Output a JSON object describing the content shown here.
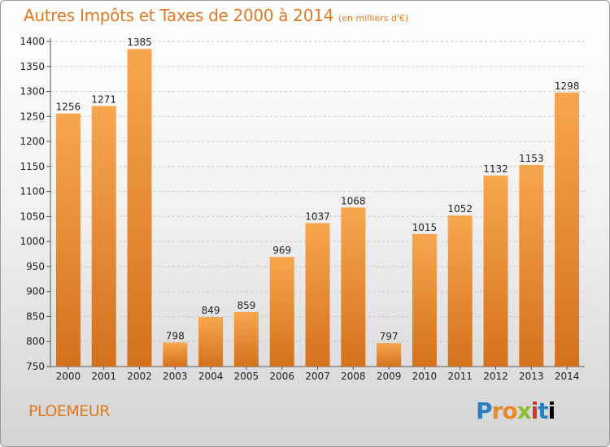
{
  "header": {
    "title": "Autres Impôts et Taxes de 2000 à 2014",
    "subtitle": "(en milliers d'€)"
  },
  "footer": {
    "city": "PLOEMEUR",
    "logo_letters": [
      "P",
      "r",
      "o",
      "x",
      "i",
      "t",
      "i"
    ]
  },
  "colors": {
    "bar_light": "#f7a64f",
    "bar_dark": "#d4711d",
    "text_accent": "#e07a22"
  },
  "chart_data": {
    "type": "bar",
    "title": "Autres Impôts et Taxes de 2000 à 2014",
    "subtitle": "(en milliers d'€)",
    "categories": [
      "2000",
      "2001",
      "2002",
      "2003",
      "2004",
      "2005",
      "2006",
      "2007",
      "2008",
      "2009",
      "2010",
      "2011",
      "2012",
      "2013",
      "2014"
    ],
    "values": [
      1256,
      1271,
      1385,
      798,
      849,
      859,
      969,
      1037,
      1068,
      797,
      1015,
      1052,
      1132,
      1153,
      1298
    ],
    "ylim": [
      750,
      1400
    ],
    "yticks": [
      750,
      800,
      850,
      900,
      950,
      1000,
      1050,
      1100,
      1150,
      1200,
      1250,
      1300,
      1350,
      1400
    ],
    "grid": true
  }
}
